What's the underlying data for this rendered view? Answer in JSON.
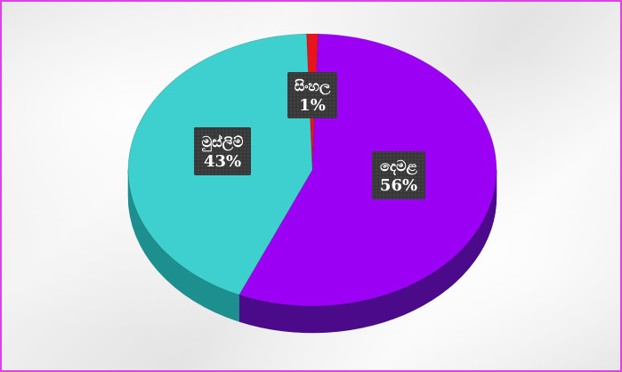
{
  "chart_data": {
    "type": "pie",
    "style": "3d",
    "slices": [
      {
        "label": "සිංහල",
        "value": 1,
        "value_label": "1%",
        "color": "#e8141a",
        "side_color": "#8a0a0e"
      },
      {
        "label": "දෙමළ",
        "value": 56,
        "value_label": "56%",
        "color": "#9b00f5",
        "side_color": "#4a0a8a"
      },
      {
        "label": "මුස්ලිම්",
        "value": 43,
        "value_label": "43%",
        "color": "#3ecfcf",
        "side_color": "#1e8f8f"
      }
    ],
    "label_style": {
      "background": "#3a3a3a",
      "text": "#ffffff"
    },
    "frame_color": "#e040e8"
  }
}
